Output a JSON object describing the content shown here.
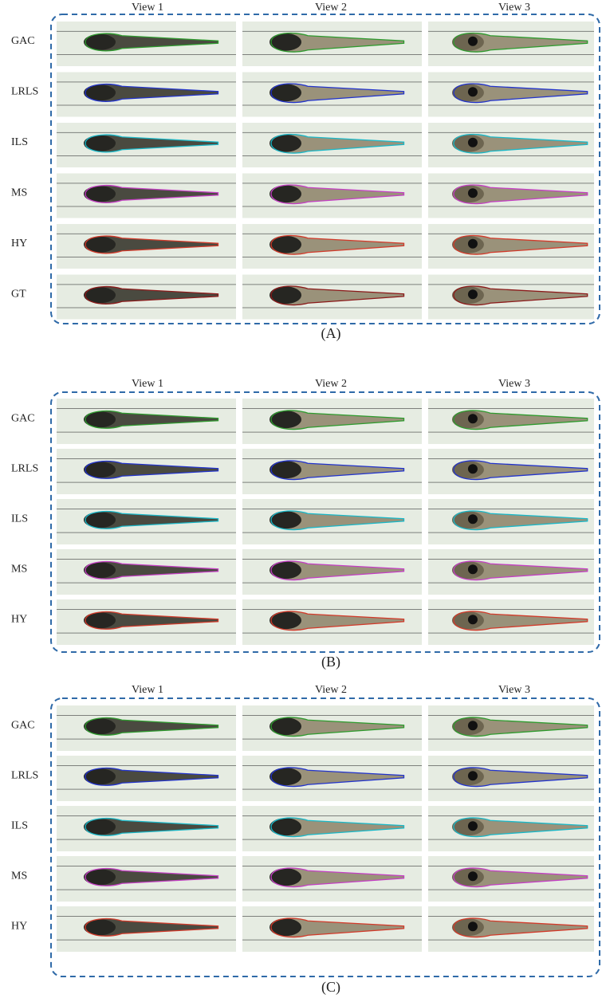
{
  "panels": [
    {
      "label": "(A)",
      "views": [
        "View 1",
        "View 2",
        "View 3"
      ],
      "rows": [
        "GAC",
        "LRLS",
        "ILS",
        "MS",
        "HY",
        "GT"
      ]
    },
    {
      "label": "(B)",
      "views": [
        "View 1",
        "View 2",
        "View 3"
      ],
      "rows": [
        "GAC",
        "LRLS",
        "ILS",
        "MS",
        "HY"
      ]
    },
    {
      "label": "(C)",
      "views": [
        "View 1",
        "View 2",
        "View 3"
      ],
      "rows": [
        "GAC",
        "LRLS",
        "ILS",
        "MS",
        "HY"
      ]
    }
  ]
}
